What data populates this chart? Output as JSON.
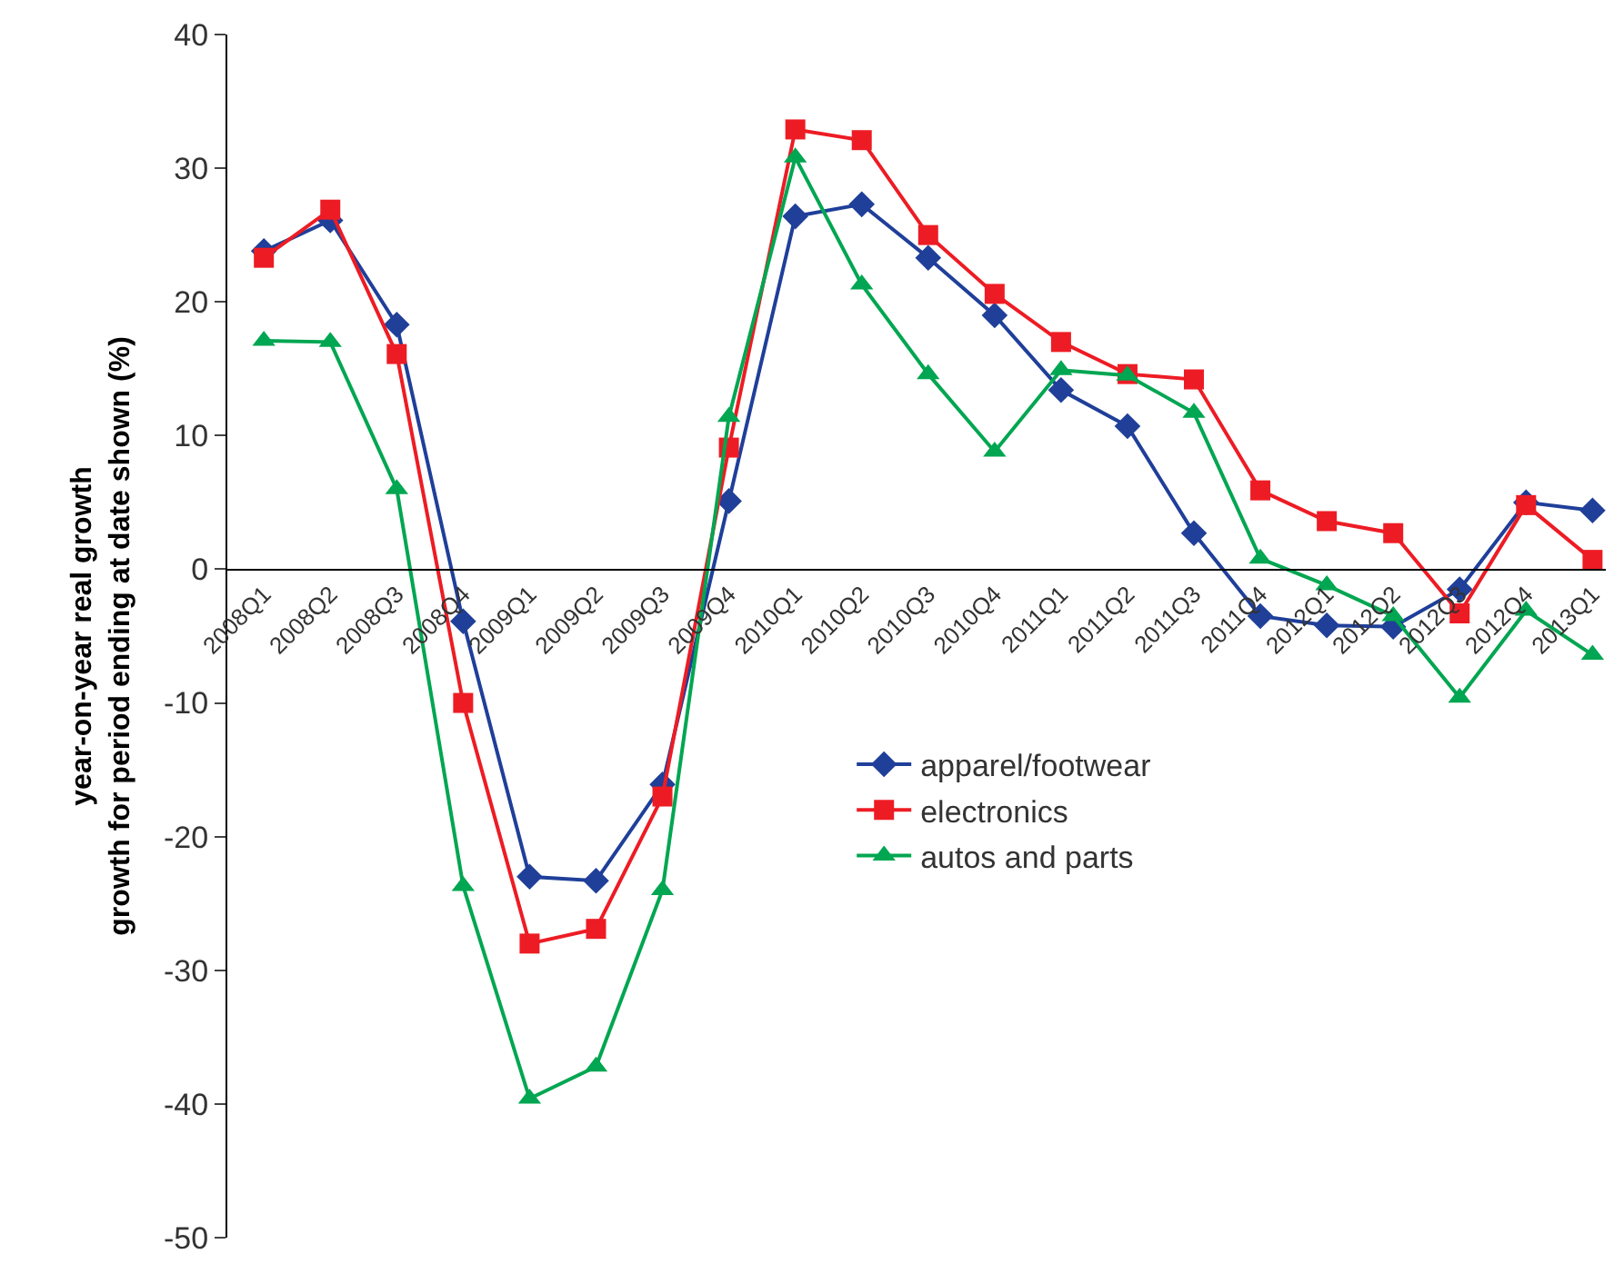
{
  "chart_data": {
    "type": "line",
    "ylabel": "year-on-year real growth\ngrowth for period ending at date shown (%)",
    "categories": [
      "2008Q1",
      "2008Q2",
      "2008Q3",
      "2008Q4",
      "2009Q1",
      "2009Q2",
      "2009Q3",
      "2009Q4",
      "2010Q1",
      "2010Q2",
      "2010Q3",
      "2010Q4",
      "2011Q1",
      "2011Q2",
      "2011Q3",
      "2011Q4",
      "2012Q1",
      "2012Q2",
      "2012Q3",
      "2012Q4",
      "2013Q1"
    ],
    "series": [
      {
        "name": "apparel/footwear",
        "color": "#1f3f99",
        "marker": "diamond",
        "values": [
          23.8,
          26.1,
          18.3,
          -3.9,
          -23.0,
          -23.3,
          -16.1,
          5.1,
          26.4,
          27.3,
          23.3,
          19.0,
          13.4,
          10.7,
          2.7,
          -3.5,
          -4.2,
          -4.3,
          -1.5,
          5.0,
          4.4
        ]
      },
      {
        "name": "electronics",
        "color": "#ed1c24",
        "marker": "square",
        "values": [
          23.3,
          26.9,
          16.1,
          -10.0,
          -28.0,
          -26.9,
          -17.0,
          9.1,
          32.9,
          32.1,
          25.0,
          20.6,
          17.0,
          14.6,
          14.2,
          5.9,
          3.6,
          2.7,
          -3.3,
          4.8,
          0.7
        ]
      },
      {
        "name": "autos and parts",
        "color": "#00a651",
        "marker": "triangle",
        "values": [
          17.1,
          17.0,
          6.0,
          -23.7,
          -39.6,
          -37.2,
          -24.0,
          11.4,
          30.8,
          21.3,
          14.6,
          8.8,
          14.9,
          14.5,
          11.7,
          0.8,
          -1.2,
          -3.5,
          -9.6,
          -3.1,
          -6.4
        ]
      }
    ],
    "ylim": [
      -50,
      40
    ],
    "yticks": [
      -50,
      -40,
      -30,
      -20,
      -10,
      0,
      10,
      20,
      30,
      40
    ],
    "legend": "middle right",
    "line_style": "solid"
  }
}
